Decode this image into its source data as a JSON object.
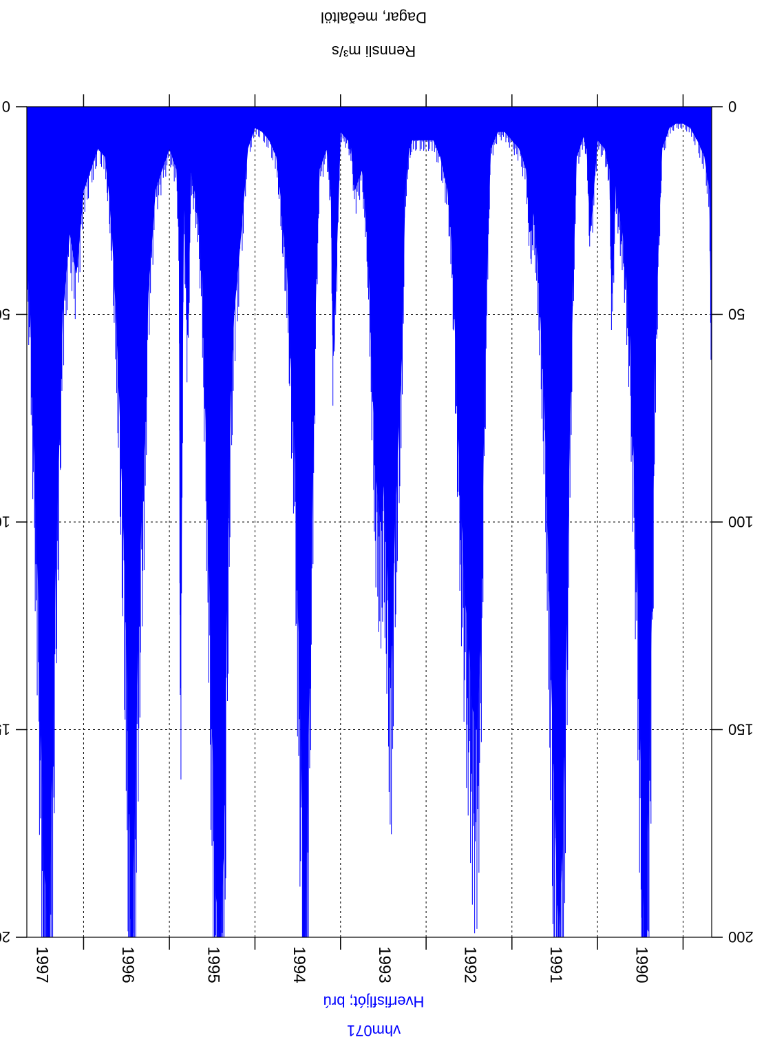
{
  "chart_data": {
    "type": "area",
    "orientation": "rotated-180",
    "station_id": "vhm071",
    "station_name": "Hverfisfljót; brú",
    "ylabel": "Rennsli m³/s",
    "xlabel": "Dagar,  meðaltöl",
    "ylim": [
      0,
      200
    ],
    "yticks": [
      "0",
      "50",
      "100",
      "150",
      "200"
    ],
    "xlim": [
      "1989-09-01",
      "1997-08-31"
    ],
    "year_labels": [
      "1990",
      "1991",
      "1992",
      "1993",
      "1994",
      "1995",
      "1996",
      "1997"
    ],
    "grid": true,
    "series": [
      {
        "name": "Hverfisfljót; brú",
        "color": "#0000ff",
        "points": [
          [
            "1989-09-01",
            60
          ],
          [
            "1989-09-10",
            20
          ],
          [
            "1989-10-01",
            12
          ],
          [
            "1989-11-01",
            8
          ],
          [
            "1989-12-01",
            5
          ],
          [
            "1990-01-01",
            4
          ],
          [
            "1990-02-01",
            4
          ],
          [
            "1990-03-01",
            5
          ],
          [
            "1990-04-01",
            10
          ],
          [
            "1990-04-15",
            30
          ],
          [
            "1990-05-01",
            60
          ],
          [
            "1990-05-15",
            120
          ],
          [
            "1990-06-01",
            170
          ],
          [
            "1990-06-10",
            200
          ],
          [
            "1990-06-20",
            190
          ],
          [
            "1990-07-01",
            150
          ],
          [
            "1990-07-15",
            110
          ],
          [
            "1990-08-01",
            80
          ],
          [
            "1990-08-15",
            55
          ],
          [
            "1990-09-01",
            40
          ],
          [
            "1990-09-15",
            30
          ],
          [
            "1990-10-01",
            25
          ],
          [
            "1990-10-15",
            18
          ],
          [
            "1990-11-01",
            45
          ],
          [
            "1990-11-10",
            15
          ],
          [
            "1990-12-01",
            10
          ],
          [
            "1991-01-01",
            8
          ],
          [
            "1991-02-01",
            30
          ],
          [
            "1991-02-15",
            10
          ],
          [
            "1991-03-01",
            7
          ],
          [
            "1991-04-01",
            12
          ],
          [
            "1991-04-15",
            40
          ],
          [
            "1991-05-01",
            80
          ],
          [
            "1991-05-15",
            130
          ],
          [
            "1991-06-01",
            180
          ],
          [
            "1991-06-15",
            200
          ],
          [
            "1991-07-01",
            170
          ],
          [
            "1991-07-15",
            140
          ],
          [
            "1991-08-01",
            100
          ],
          [
            "1991-08-15",
            70
          ],
          [
            "1991-09-01",
            50
          ],
          [
            "1991-09-15",
            35
          ],
          [
            "1991-10-01",
            25
          ],
          [
            "1991-10-15",
            30
          ],
          [
            "1991-11-01",
            15
          ],
          [
            "1991-12-01",
            10
          ],
          [
            "1992-01-01",
            8
          ],
          [
            "1992-02-01",
            6
          ],
          [
            "1992-03-01",
            6
          ],
          [
            "1992-04-01",
            10
          ],
          [
            "1992-04-15",
            35
          ],
          [
            "1992-05-01",
            80
          ],
          [
            "1992-05-15",
            130
          ],
          [
            "1992-06-01",
            150
          ],
          [
            "1992-06-15",
            145
          ],
          [
            "1992-07-01",
            130
          ],
          [
            "1992-07-15",
            120
          ],
          [
            "1992-08-01",
            100
          ],
          [
            "1992-08-15",
            80
          ],
          [
            "1992-09-01",
            50
          ],
          [
            "1992-09-15",
            30
          ],
          [
            "1992-10-01",
            20
          ],
          [
            "1992-11-01",
            12
          ],
          [
            "1992-12-01",
            8
          ],
          [
            "1993-01-01",
            8
          ],
          [
            "1993-02-01",
            8
          ],
          [
            "1993-03-01",
            8
          ],
          [
            "1993-03-15",
            10
          ],
          [
            "1993-04-01",
            20
          ],
          [
            "1993-04-15",
            60
          ],
          [
            "1993-05-01",
            80
          ],
          [
            "1993-05-15",
            100
          ],
          [
            "1993-06-01",
            140
          ],
          [
            "1993-06-15",
            110
          ],
          [
            "1993-07-01",
            90
          ],
          [
            "1993-07-15",
            100
          ],
          [
            "1993-08-01",
            90
          ],
          [
            "1993-08-15",
            70
          ],
          [
            "1993-09-01",
            40
          ],
          [
            "1993-09-15",
            25
          ],
          [
            "1993-10-01",
            15
          ],
          [
            "1993-11-01",
            20
          ],
          [
            "1993-11-15",
            10
          ],
          [
            "1993-12-01",
            8
          ],
          [
            "1994-01-01",
            6
          ],
          [
            "1994-02-01",
            60
          ],
          [
            "1994-02-10",
            20
          ],
          [
            "1994-03-01",
            10
          ],
          [
            "1994-04-01",
            15
          ],
          [
            "1994-04-15",
            40
          ],
          [
            "1994-05-01",
            90
          ],
          [
            "1994-05-15",
            140
          ],
          [
            "1994-06-01",
            200
          ],
          [
            "1994-06-15",
            160
          ],
          [
            "1994-07-01",
            120
          ],
          [
            "1994-07-15",
            80
          ],
          [
            "1994-08-01",
            60
          ],
          [
            "1994-08-15",
            40
          ],
          [
            "1994-09-01",
            30
          ],
          [
            "1994-09-15",
            20
          ],
          [
            "1994-10-01",
            12
          ],
          [
            "1994-11-01",
            8
          ],
          [
            "1994-12-01",
            6
          ],
          [
            "1995-01-01",
            5
          ],
          [
            "1995-02-01",
            10
          ],
          [
            "1995-03-01",
            30
          ],
          [
            "1995-04-01",
            50
          ],
          [
            "1995-04-15",
            70
          ],
          [
            "1995-05-01",
            120
          ],
          [
            "1995-05-15",
            180
          ],
          [
            "1995-06-01",
            200
          ],
          [
            "1995-06-15",
            190
          ],
          [
            "1995-07-01",
            150
          ],
          [
            "1995-07-15",
            110
          ],
          [
            "1995-08-01",
            70
          ],
          [
            "1995-08-15",
            40
          ],
          [
            "1995-09-01",
            25
          ],
          [
            "1995-09-15",
            20
          ],
          [
            "1995-10-01",
            15
          ],
          [
            "1995-10-15",
            55
          ],
          [
            "1995-11-01",
            20
          ],
          [
            "1995-11-15",
            140
          ],
          [
            "1995-11-20",
            30
          ],
          [
            "1995-12-01",
            15
          ],
          [
            "1996-01-01",
            10
          ],
          [
            "1996-02-01",
            15
          ],
          [
            "1996-03-01",
            20
          ],
          [
            "1996-04-01",
            45
          ],
          [
            "1996-04-15",
            80
          ],
          [
            "1996-05-01",
            100
          ],
          [
            "1996-05-15",
            130
          ],
          [
            "1996-06-01",
            180
          ],
          [
            "1996-06-10",
            200
          ],
          [
            "1996-06-20",
            170
          ],
          [
            "1996-07-01",
            130
          ],
          [
            "1996-07-15",
            100
          ],
          [
            "1996-08-01",
            70
          ],
          [
            "1996-08-15",
            50
          ],
          [
            "1996-09-01",
            30
          ],
          [
            "1996-09-15",
            20
          ],
          [
            "1996-10-01",
            12
          ],
          [
            "1996-11-01",
            10
          ],
          [
            "1996-12-01",
            15
          ],
          [
            "1997-01-01",
            20
          ],
          [
            "1997-02-01",
            40
          ],
          [
            "1997-03-01",
            30
          ],
          [
            "1997-04-01",
            50
          ],
          [
            "1997-04-15",
            80
          ],
          [
            "1997-05-01",
            110
          ],
          [
            "1997-05-15",
            160
          ],
          [
            "1997-06-01",
            200
          ],
          [
            "1997-06-15",
            185
          ],
          [
            "1997-07-01",
            150
          ],
          [
            "1997-07-15",
            110
          ],
          [
            "1997-08-01",
            80
          ],
          [
            "1997-08-15",
            50
          ],
          [
            "1997-08-31",
            35
          ]
        ]
      }
    ]
  }
}
